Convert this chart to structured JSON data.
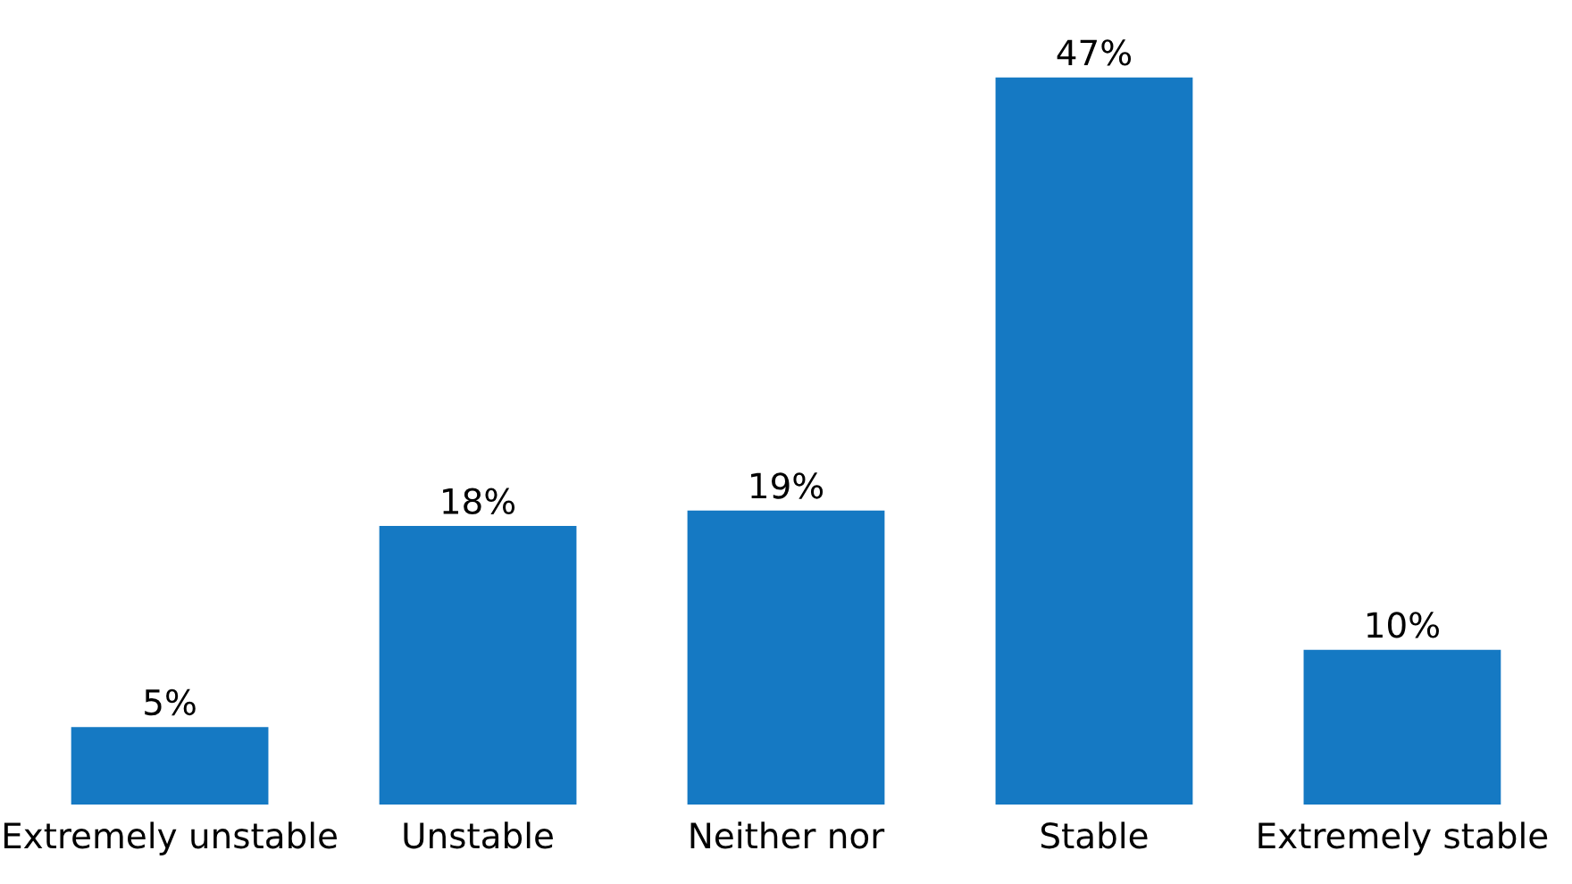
{
  "chart_data": {
    "type": "bar",
    "categories": [
      "Extremely unstable",
      "Unstable",
      "Neither nor",
      "Stable",
      "Extremely stable"
    ],
    "values": [
      5,
      18,
      19,
      47,
      10
    ],
    "value_labels": [
      "5%",
      "18%",
      "19%",
      "47%",
      "10%"
    ],
    "color": "#1579c3",
    "grid": false,
    "legend": false
  }
}
